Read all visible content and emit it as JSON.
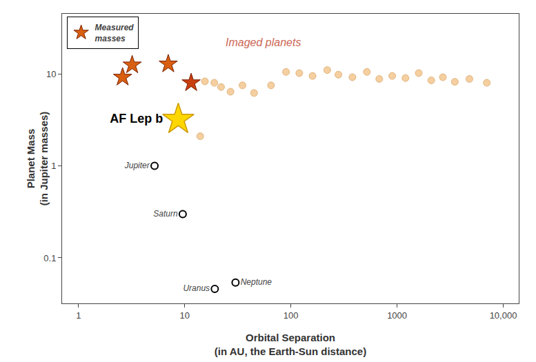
{
  "chart_data": {
    "type": "scatter",
    "log": true,
    "grid": false,
    "legend": "upper left",
    "xlabel": "Orbital Separation\n(in AU, the Earth-Sun distance)",
    "ylabel": "Planet Mass\n(in Jupiter masses)",
    "xlim": [
      0.7,
      14000
    ],
    "ylim": [
      0.032,
      45
    ],
    "xticks": [
      1,
      10,
      100,
      1000,
      {
        "value": 10000,
        "label": "10,000"
      }
    ],
    "yticks": [
      0.1,
      1,
      10
    ],
    "series": [
      {
        "name": "Measured\nmasses",
        "marker": "star",
        "colors": [
          "#d95f10",
          "#d95f10",
          "#d95f10",
          "#c84010"
        ],
        "x": [
          3.2,
          2.6,
          7.0,
          11.5
        ],
        "values": [
          12.5,
          9.2,
          12.8,
          8.0
        ]
      },
      {
        "marker": "circle",
        "color": "#f5cfa0",
        "x": [
          15.5,
          19.0,
          22.0,
          27.0,
          35.0,
          45.0,
          65.0,
          90.0,
          120.0,
          160.0,
          220.0,
          280.0,
          380.0,
          520.0,
          680.0,
          900.0,
          1200.0,
          1600.0,
          2100.0,
          2700.0,
          3500.0,
          4800.0,
          7000.0,
          14.0
        ],
        "values": [
          8.3,
          8.0,
          7.2,
          6.4,
          7.5,
          6.2,
          7.5,
          10.5,
          10.2,
          9.5,
          11.0,
          9.8,
          9.2,
          10.5,
          8.8,
          9.5,
          9.0,
          10.2,
          8.5,
          9.2,
          8.2,
          8.8,
          8.0,
          2.1
        ]
      },
      {
        "marker": "star",
        "color": "#FFD700",
        "x": [
          8.7
        ],
        "values": [
          3.2
        ],
        "labels": [
          "AF Lep b"
        ]
      },
      {
        "marker": "circle",
        "color": "#ffffff",
        "x": [
          5.2,
          9.58,
          19.2,
          30.1
        ],
        "values": [
          1.0,
          0.299,
          0.046,
          0.054
        ],
        "labels": [
          "Jupiter",
          "Saturn",
          "Uranus",
          "Neptune"
        ]
      }
    ],
    "annotations": [
      {
        "text": "Imaged planets",
        "x": 55,
        "y": 22,
        "color": "#cc6655"
      }
    ]
  }
}
